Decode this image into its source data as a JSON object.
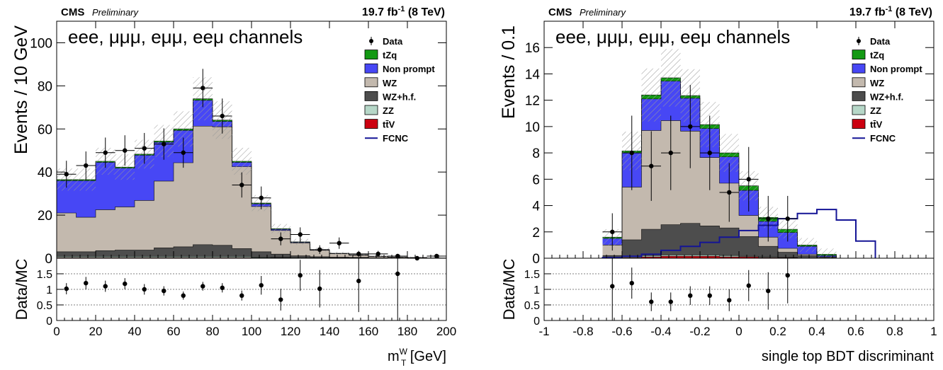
{
  "chart_data": [
    {
      "type": "bar",
      "header": {
        "experiment": "CMS",
        "status": "Preliminary",
        "lumi": "19.7 fb",
        "lumi_exp": "-1",
        "energy": " (8 TeV)"
      },
      "channels": "eee, μμμ, eμμ, eeμ channels",
      "ylabel": "Events / 10 GeV",
      "ratio_ylabel": "Data/MC",
      "xlabel_main": "m",
      "xlabel_sub": "T",
      "xlabel_sup": "W",
      "xlabel_unit": " [GeV]",
      "xlim": [
        0,
        200
      ],
      "ylim": [
        0,
        110
      ],
      "ratio_ylim": [
        0,
        2
      ],
      "xticks": [
        "0",
        "20",
        "40",
        "60",
        "80",
        "100",
        "120",
        "140",
        "160",
        "180",
        "200"
      ],
      "yticks": [
        "0",
        "20",
        "40",
        "60",
        "80",
        "100"
      ],
      "ratio_yticks": [
        "0",
        "0.5",
        "1",
        "1.5"
      ],
      "bin_edges": [
        0,
        10,
        20,
        30,
        40,
        50,
        60,
        70,
        80,
        90,
        100,
        110,
        120,
        130,
        140,
        150,
        160,
        170,
        180,
        190,
        200
      ],
      "stack": [
        {
          "name": "ttV",
          "color": "#cc0010",
          "values": [
            0.3,
            0.3,
            0.3,
            0.3,
            0.3,
            0.3,
            0.3,
            0.3,
            0.3,
            0.3,
            0.2,
            0.2,
            0.1,
            0.1,
            0.1,
            0.1,
            0,
            0,
            0,
            0
          ]
        },
        {
          "name": "ZZ",
          "color": "#b6d7c8",
          "values": [
            0.5,
            0.5,
            0.5,
            0.5,
            0.5,
            0.5,
            0.5,
            0.5,
            0.5,
            0.5,
            0.3,
            0.2,
            0.2,
            0.1,
            0.1,
            0.1,
            0.1,
            0,
            0,
            0
          ]
        },
        {
          "name": "WZ+h.f.",
          "color": "#4d4d4d",
          "values": [
            2.2,
            2.2,
            2.7,
            3,
            3,
            4,
            4.5,
            5.5,
            5.2,
            3.7,
            2.5,
            1.5,
            0.8,
            0.5,
            0.3,
            0.2,
            0.1,
            0.1,
            0.1,
            0
          ]
        },
        {
          "name": "WZ",
          "color": "#c3b9ae",
          "values": [
            18,
            16,
            19,
            20,
            23,
            31,
            39,
            55,
            55,
            38,
            21,
            11,
            6,
            3,
            1.6,
            1,
            0.6,
            0.4,
            0.2,
            0.1
          ]
        },
        {
          "name": "Non prompt",
          "color": "#4747f5",
          "values": [
            15,
            17,
            22,
            18,
            21,
            18,
            15,
            12,
            2.5,
            2,
            1.2,
            0.5,
            0.3,
            0.2,
            0.1,
            0.1,
            0.1,
            0,
            0,
            0
          ]
        },
        {
          "name": "tZq",
          "color": "#139913",
          "values": [
            0.5,
            0.5,
            0.5,
            0.5,
            0.5,
            0.6,
            0.7,
            0.7,
            0.6,
            0.5,
            0.4,
            0.3,
            0.2,
            0.1,
            0.1,
            0.1,
            0,
            0,
            0,
            0
          ]
        }
      ],
      "data": {
        "x": [
          5,
          15,
          25,
          35,
          45,
          55,
          65,
          75,
          85,
          95,
          105,
          115,
          125,
          135,
          145,
          155,
          165,
          175,
          185,
          195
        ],
        "y": [
          39,
          43,
          49,
          50,
          51,
          53,
          49,
          79,
          66,
          34,
          28,
          9,
          11,
          4,
          7,
          2,
          2,
          1,
          0,
          1
        ]
      },
      "ratio": {
        "x": [
          5,
          15,
          25,
          35,
          45,
          55,
          65,
          75,
          85,
          95,
          105,
          115,
          125,
          135,
          155,
          175
        ],
        "y": [
          1.02,
          1.2,
          1.1,
          1.18,
          1.0,
          0.95,
          0.8,
          1.1,
          1.05,
          0.8,
          1.13,
          0.67,
          1.45,
          1.02,
          1.27,
          1.5
        ],
        "err": [
          0.18,
          0.2,
          0.18,
          0.18,
          0.17,
          0.15,
          0.13,
          0.14,
          0.15,
          0.16,
          0.3,
          0.35,
          0.5,
          0.6,
          1.0,
          1.5
        ]
      },
      "legend": [
        "Data",
        "tZq",
        "Non prompt",
        "WZ",
        "WZ+h.f.",
        "ZZ",
        "tt̄V",
        "FCNC"
      ],
      "fcnc": null
    },
    {
      "type": "bar",
      "header": {
        "experiment": "CMS",
        "status": "Preliminary",
        "lumi": "19.7 fb",
        "lumi_exp": "-1",
        "energy": " (8 TeV)"
      },
      "channels": "eee, μμμ, eμμ, eeμ channels",
      "ylabel": "Events / 0.1",
      "ratio_ylabel": "Data/MC",
      "xlabel_main": "single top BDT discriminant",
      "xlabel_sub": "",
      "xlabel_sup": "",
      "xlabel_unit": "",
      "xlim": [
        -1,
        1
      ],
      "ylim": [
        0,
        18
      ],
      "ratio_ylim": [
        0,
        2
      ],
      "xticks": [
        "-1",
        "-0.8",
        "-0.6",
        "-0.4",
        "-0.2",
        "0",
        "0.2",
        "0.4",
        "0.6",
        "0.8",
        "1"
      ],
      "yticks": [
        "0",
        "2",
        "4",
        "6",
        "8",
        "10",
        "12",
        "14",
        "16"
      ],
      "ratio_yticks": [
        "0",
        "0.5",
        "1",
        "1.5"
      ],
      "bin_edges": [
        -0.7,
        -0.6,
        -0.5,
        -0.4,
        -0.3,
        -0.2,
        -0.1,
        0,
        0.1,
        0.2,
        0.3,
        0.4,
        0.5,
        0.6,
        0.7
      ],
      "stack": [
        {
          "name": "ttV",
          "color": "#cc0010",
          "values": [
            0,
            0.05,
            0.1,
            0.15,
            0.15,
            0.15,
            0.1,
            0.1,
            0.05,
            0.05,
            0,
            0,
            0,
            0
          ]
        },
        {
          "name": "ZZ",
          "color": "#b6d7c8",
          "values": [
            0,
            0.05,
            0.1,
            0.1,
            0.1,
            0.1,
            0.1,
            0.05,
            0.05,
            0,
            0,
            0,
            0,
            0
          ]
        },
        {
          "name": "WZ+h.f.",
          "color": "#4d4d4d",
          "values": [
            0.2,
            1.3,
            2,
            2.3,
            2.4,
            2.2,
            2.1,
            1.5,
            0.8,
            0.4,
            0.2,
            0.1,
            0,
            0
          ]
        },
        {
          "name": "WZ",
          "color": "#c3b9ae",
          "values": [
            0.8,
            4,
            7.5,
            7.9,
            7,
            5.2,
            3.4,
            1.6,
            0.7,
            0.3,
            0.1,
            0,
            0,
            0
          ]
        },
        {
          "name": "Non prompt",
          "color": "#4747f5",
          "values": [
            0.5,
            2.6,
            2.4,
            3.0,
            2.5,
            2.2,
            2.0,
            1.9,
            1.2,
            1.2,
            0.6,
            0.1,
            0,
            0
          ]
        },
        {
          "name": "tZq",
          "color": "#139913",
          "values": [
            0.1,
            0.15,
            0.3,
            0.25,
            0.2,
            0.3,
            0.3,
            0.35,
            0.3,
            0.25,
            0.1,
            0.1,
            0,
            0
          ]
        }
      ],
      "data": {
        "x": [
          -0.65,
          -0.55,
          -0.45,
          -0.35,
          -0.25,
          -0.15,
          -0.05,
          0.05,
          0.15,
          0.25
        ],
        "y": [
          2,
          8,
          7,
          8,
          10,
          8,
          5,
          6,
          3,
          3
        ]
      },
      "ratio": {
        "x": [
          -0.65,
          -0.55,
          -0.45,
          -0.35,
          -0.25,
          -0.15,
          -0.05,
          0.05,
          0.15,
          0.25
        ],
        "y": [
          1.1,
          1.2,
          0.6,
          0.6,
          0.8,
          0.8,
          0.65,
          1.12,
          0.95,
          1.45
        ],
        "err": [
          1.1,
          0.5,
          0.3,
          0.3,
          0.3,
          0.3,
          0.35,
          0.5,
          0.6,
          0.9
        ]
      },
      "legend": [
        "Data",
        "tZq",
        "Non prompt",
        "WZ",
        "WZ+h.f.",
        "ZZ",
        "tt̄V",
        "FCNC"
      ],
      "fcnc": {
        "color": "#141496",
        "values": [
          0.05,
          0.15,
          0.3,
          0.6,
          0.9,
          1.2,
          1.6,
          2.1,
          2.5,
          3.0,
          3.4,
          3.7,
          2.9,
          1.3
        ]
      }
    }
  ]
}
